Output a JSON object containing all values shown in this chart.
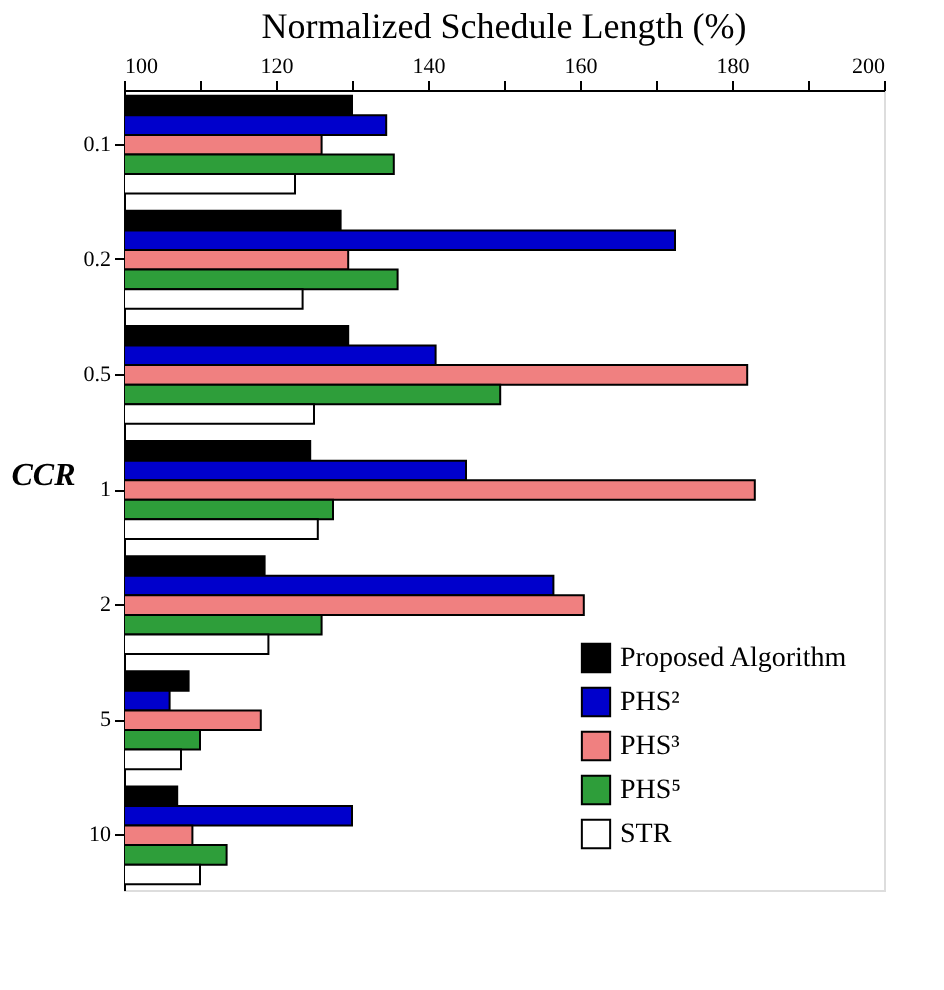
{
  "chart_data": {
    "type": "bar",
    "orientation": "horizontal",
    "title": "Normalized Schedule Length (%)",
    "ylabel": "CCR",
    "categories": [
      "0.1",
      "0.2",
      "0.5",
      "1",
      "2",
      "5",
      "10"
    ],
    "series": [
      {
        "name": "Proposed Algorithm",
        "color": "#000000",
        "values": [
          130,
          128.5,
          129.5,
          124.5,
          118.5,
          108.5,
          107
        ]
      },
      {
        "name": "PHS²",
        "color": "#0000cc",
        "values": [
          134.5,
          172.5,
          141,
          145,
          156.5,
          106,
          130
        ]
      },
      {
        "name": "PHS³",
        "color": "#f08080",
        "values": [
          126,
          129.5,
          182,
          183,
          160.5,
          118,
          109
        ]
      },
      {
        "name": "PHS⁵",
        "color": "#2e9e3a",
        "values": [
          135.5,
          136,
          149.5,
          127.5,
          126,
          110,
          113.5
        ]
      },
      {
        "name": "STR",
        "color": "#ffffff",
        "values": [
          122.5,
          123.5,
          125,
          125.5,
          119,
          107.5,
          110
        ]
      }
    ],
    "xlim": [
      100,
      200
    ],
    "xticks": [
      100,
      {
        "value": 110,
        "label": null
      },
      120,
      {
        "value": 130,
        "label": null
      },
      140,
      {
        "value": 150,
        "label": null
      },
      160,
      {
        "value": 170,
        "label": null
      },
      180,
      {
        "value": 190,
        "label": null
      },
      200
    ],
    "grid": false,
    "legend": "bottom right"
  }
}
